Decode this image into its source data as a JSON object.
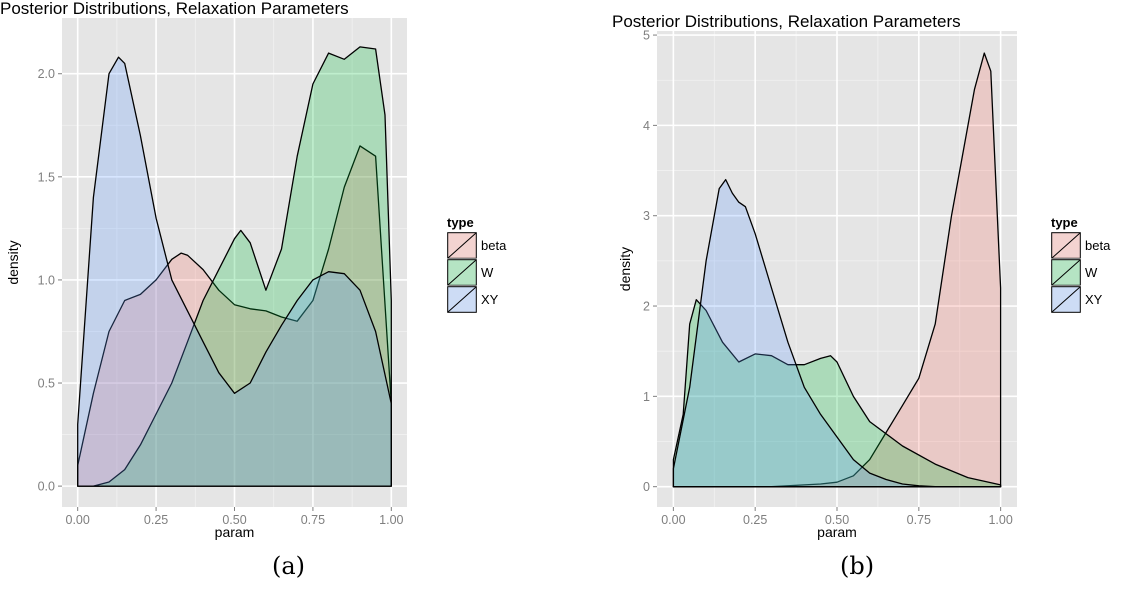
{
  "chart_data": [
    {
      "type": "area",
      "panel_label": "(a)",
      "title": "Posterior Distributions, Relaxation Parameters",
      "xlabel": "param",
      "ylabel": "density",
      "xlim": [
        0,
        1
      ],
      "ylim": [
        0,
        2.25
      ],
      "xticks": [
        "0.00",
        "0.25",
        "0.50",
        "0.75",
        "1.00"
      ],
      "yticks": [
        "0.0",
        "0.5",
        "1.0",
        "1.5",
        "2.0"
      ],
      "grid": true,
      "legend": {
        "title": "type",
        "position": "right",
        "entries": [
          "beta",
          "W",
          "XY"
        ]
      },
      "series": [
        {
          "name": "beta",
          "color": "#F8766D",
          "x": [
            0,
            0.05,
            0.1,
            0.15,
            0.2,
            0.25,
            0.3,
            0.33,
            0.35,
            0.4,
            0.45,
            0.5,
            0.55,
            0.6,
            0.65,
            0.7,
            0.75,
            0.8,
            0.85,
            0.9,
            0.95,
            1
          ],
          "y": [
            0.1,
            0.45,
            0.75,
            0.9,
            0.93,
            1.0,
            1.1,
            1.13,
            1.12,
            1.05,
            0.95,
            0.88,
            0.86,
            0.85,
            0.82,
            0.8,
            0.9,
            1.15,
            1.45,
            1.65,
            1.6,
            0.4
          ]
        },
        {
          "name": "W",
          "color": "#00BA38",
          "x": [
            0,
            0.05,
            0.1,
            0.15,
            0.2,
            0.25,
            0.3,
            0.35,
            0.4,
            0.45,
            0.5,
            0.52,
            0.55,
            0.6,
            0.65,
            0.7,
            0.75,
            0.8,
            0.85,
            0.9,
            0.95,
            0.98,
            1
          ],
          "y": [
            0,
            0,
            0.02,
            0.08,
            0.2,
            0.35,
            0.5,
            0.7,
            0.9,
            1.05,
            1.2,
            1.24,
            1.18,
            0.95,
            1.15,
            1.6,
            1.95,
            2.1,
            2.07,
            2.13,
            2.12,
            1.8,
            0.9
          ]
        },
        {
          "name": "XY",
          "color": "#619CFF",
          "x": [
            0,
            0.05,
            0.1,
            0.13,
            0.15,
            0.2,
            0.25,
            0.3,
            0.35,
            0.4,
            0.45,
            0.5,
            0.55,
            0.6,
            0.65,
            0.7,
            0.75,
            0.8,
            0.85,
            0.9,
            0.95,
            1
          ],
          "y": [
            0.3,
            1.4,
            2.0,
            2.08,
            2.05,
            1.7,
            1.3,
            1.0,
            0.85,
            0.7,
            0.55,
            0.45,
            0.5,
            0.65,
            0.78,
            0.9,
            1.0,
            1.04,
            1.03,
            0.95,
            0.75,
            0.4
          ]
        }
      ]
    },
    {
      "type": "area",
      "panel_label": "(b)",
      "title": "Posterior Distributions, Relaxation Parameters",
      "xlabel": "param",
      "ylabel": "density",
      "xlim": [
        0,
        1
      ],
      "ylim": [
        0,
        5
      ],
      "xticks": [
        "0.00",
        "0.25",
        "0.50",
        "0.75",
        "1.00"
      ],
      "yticks": [
        "0",
        "1",
        "2",
        "3",
        "4",
        "5"
      ],
      "grid": true,
      "legend": {
        "title": "type",
        "position": "right",
        "entries": [
          "beta",
          "W",
          "XY"
        ]
      },
      "series": [
        {
          "name": "beta",
          "color": "#F8766D",
          "x": [
            0,
            0.3,
            0.4,
            0.45,
            0.5,
            0.55,
            0.6,
            0.65,
            0.7,
            0.75,
            0.8,
            0.85,
            0.88,
            0.92,
            0.95,
            0.97,
            1
          ],
          "y": [
            0,
            0,
            0.02,
            0.03,
            0.05,
            0.12,
            0.3,
            0.6,
            0.9,
            1.2,
            1.8,
            3.0,
            3.6,
            4.4,
            4.8,
            4.6,
            2.2
          ]
        },
        {
          "name": "W",
          "color": "#00BA38",
          "x": [
            0,
            0.03,
            0.05,
            0.07,
            0.1,
            0.15,
            0.2,
            0.25,
            0.3,
            0.35,
            0.4,
            0.45,
            0.48,
            0.5,
            0.55,
            0.6,
            0.7,
            0.8,
            0.9,
            1
          ],
          "y": [
            0.3,
            0.8,
            1.8,
            2.07,
            1.95,
            1.6,
            1.38,
            1.47,
            1.45,
            1.35,
            1.35,
            1.42,
            1.45,
            1.38,
            1.0,
            0.72,
            0.45,
            0.25,
            0.1,
            0.02
          ]
        },
        {
          "name": "XY",
          "color": "#619CFF",
          "x": [
            0,
            0.05,
            0.1,
            0.14,
            0.16,
            0.18,
            0.2,
            0.22,
            0.25,
            0.3,
            0.35,
            0.4,
            0.45,
            0.5,
            0.55,
            0.6,
            0.65,
            0.7,
            0.75,
            0.8,
            0.9,
            1
          ],
          "y": [
            0.2,
            1.1,
            2.5,
            3.3,
            3.4,
            3.25,
            3.15,
            3.1,
            2.8,
            2.2,
            1.6,
            1.1,
            0.8,
            0.55,
            0.3,
            0.15,
            0.08,
            0.03,
            0.01,
            0,
            0,
            0
          ]
        }
      ]
    }
  ]
}
